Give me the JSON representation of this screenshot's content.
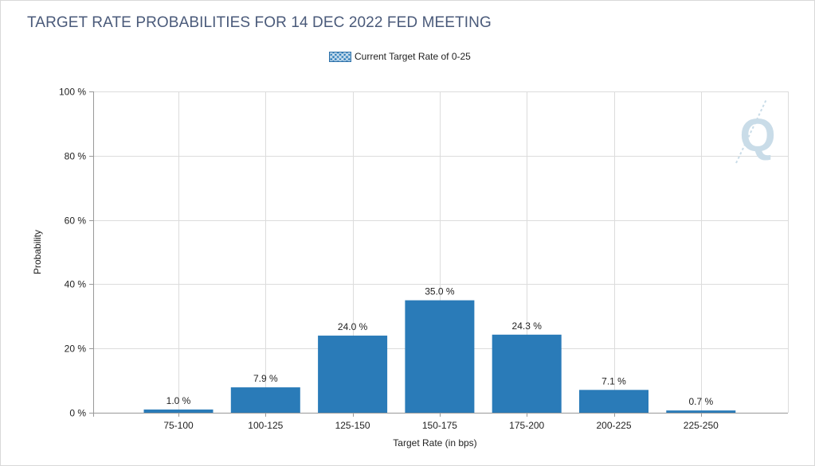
{
  "chart_data": {
    "type": "bar",
    "title": "TARGET RATE PROBABILITIES FOR 14 DEC 2022 FED MEETING",
    "xlabel": "Target Rate (in bps)",
    "ylabel": "Probability",
    "ylim": [
      0,
      100
    ],
    "yticks": [
      0,
      20,
      40,
      60,
      80,
      100
    ],
    "ytick_labels": [
      "0 %",
      "20 %",
      "40 %",
      "60 %",
      "80 %",
      "100 %"
    ],
    "grid": true,
    "legend_position": "top-center",
    "categories": [
      "75-100",
      "100-125",
      "125-150",
      "150-175",
      "175-200",
      "200-225",
      "225-250"
    ],
    "series": [
      {
        "name": "Current Target Rate of 0-25",
        "values": [
          1.0,
          7.9,
          24.0,
          35.0,
          24.3,
          7.1,
          0.7
        ],
        "labels": [
          "1.0 %",
          "7.9 %",
          "24.0 %",
          "35.0 %",
          "24.3 %",
          "7.1 %",
          "0.7 %"
        ],
        "color": "#2a7bb8"
      }
    ]
  },
  "logo": {
    "icon": "q-logo-icon",
    "color": "#c9dce8"
  }
}
